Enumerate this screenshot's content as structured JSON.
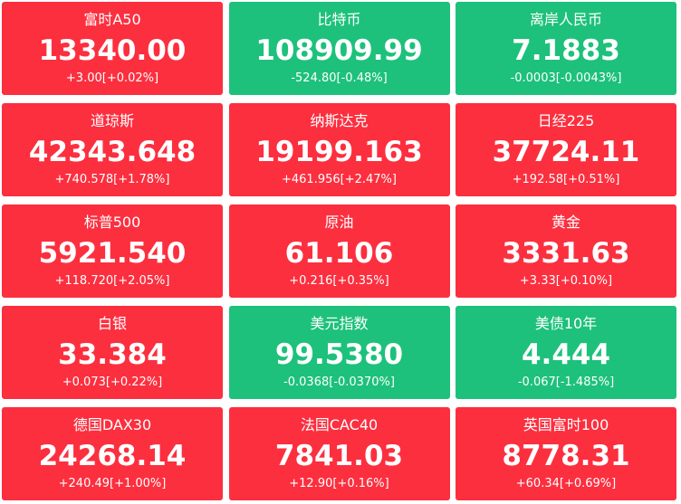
{
  "tiles": [
    {
      "name": "富时A50",
      "price": "13340.00",
      "change": "+3.00[+0.02%]",
      "color": "#fc2f3f"
    },
    {
      "name": "比特币",
      "price": "108909.99",
      "change": "-524.80[-0.48%]",
      "color": "#1dc17b"
    },
    {
      "name": "离岸人民币",
      "price": "7.1883",
      "change": "-0.0003[-0.0043%]",
      "color": "#1dc17b"
    },
    {
      "name": "道琼斯",
      "price": "42343.648",
      "change": "+740.578[+1.78%]",
      "color": "#fc2f3f"
    },
    {
      "name": "纳斯达克",
      "price": "19199.163",
      "change": "+461.956[+2.47%]",
      "color": "#fc2f3f"
    },
    {
      "name": "日经225",
      "price": "37724.11",
      "change": "+192.58[+0.51%]",
      "color": "#fc2f3f"
    },
    {
      "name": "标普500",
      "price": "5921.540",
      "change": "+118.720[+2.05%]",
      "color": "#fc2f3f"
    },
    {
      "name": "原油",
      "price": "61.106",
      "change": "+0.216[+0.35%]",
      "color": "#fc2f3f"
    },
    {
      "name": "黄金",
      "price": "3331.63",
      "change": "+3.33[+0.10%]",
      "color": "#fc2f3f"
    },
    {
      "name": "白银",
      "price": "33.384",
      "change": "+0.073[+0.22%]",
      "color": "#fc2f3f"
    },
    {
      "name": "美元指数",
      "price": "99.5380",
      "change": "-0.0368[-0.0370%]",
      "color": "#1dc17b"
    },
    {
      "name": "美债10年",
      "price": "4.444",
      "change": "-0.067[-1.485%]",
      "color": "#1dc17b"
    },
    {
      "name": "德国DAX30",
      "price": "24268.14",
      "change": "+240.49[+1.00%]",
      "color": "#fc2f3f"
    },
    {
      "name": "法国CAC40",
      "price": "7841.03",
      "change": "+12.90[+0.16%]",
      "color": "#fc2f3f"
    },
    {
      "name": "英国富时100",
      "price": "8778.31",
      "change": "+60.34[+0.69%]",
      "color": "#fc2f3f"
    }
  ]
}
